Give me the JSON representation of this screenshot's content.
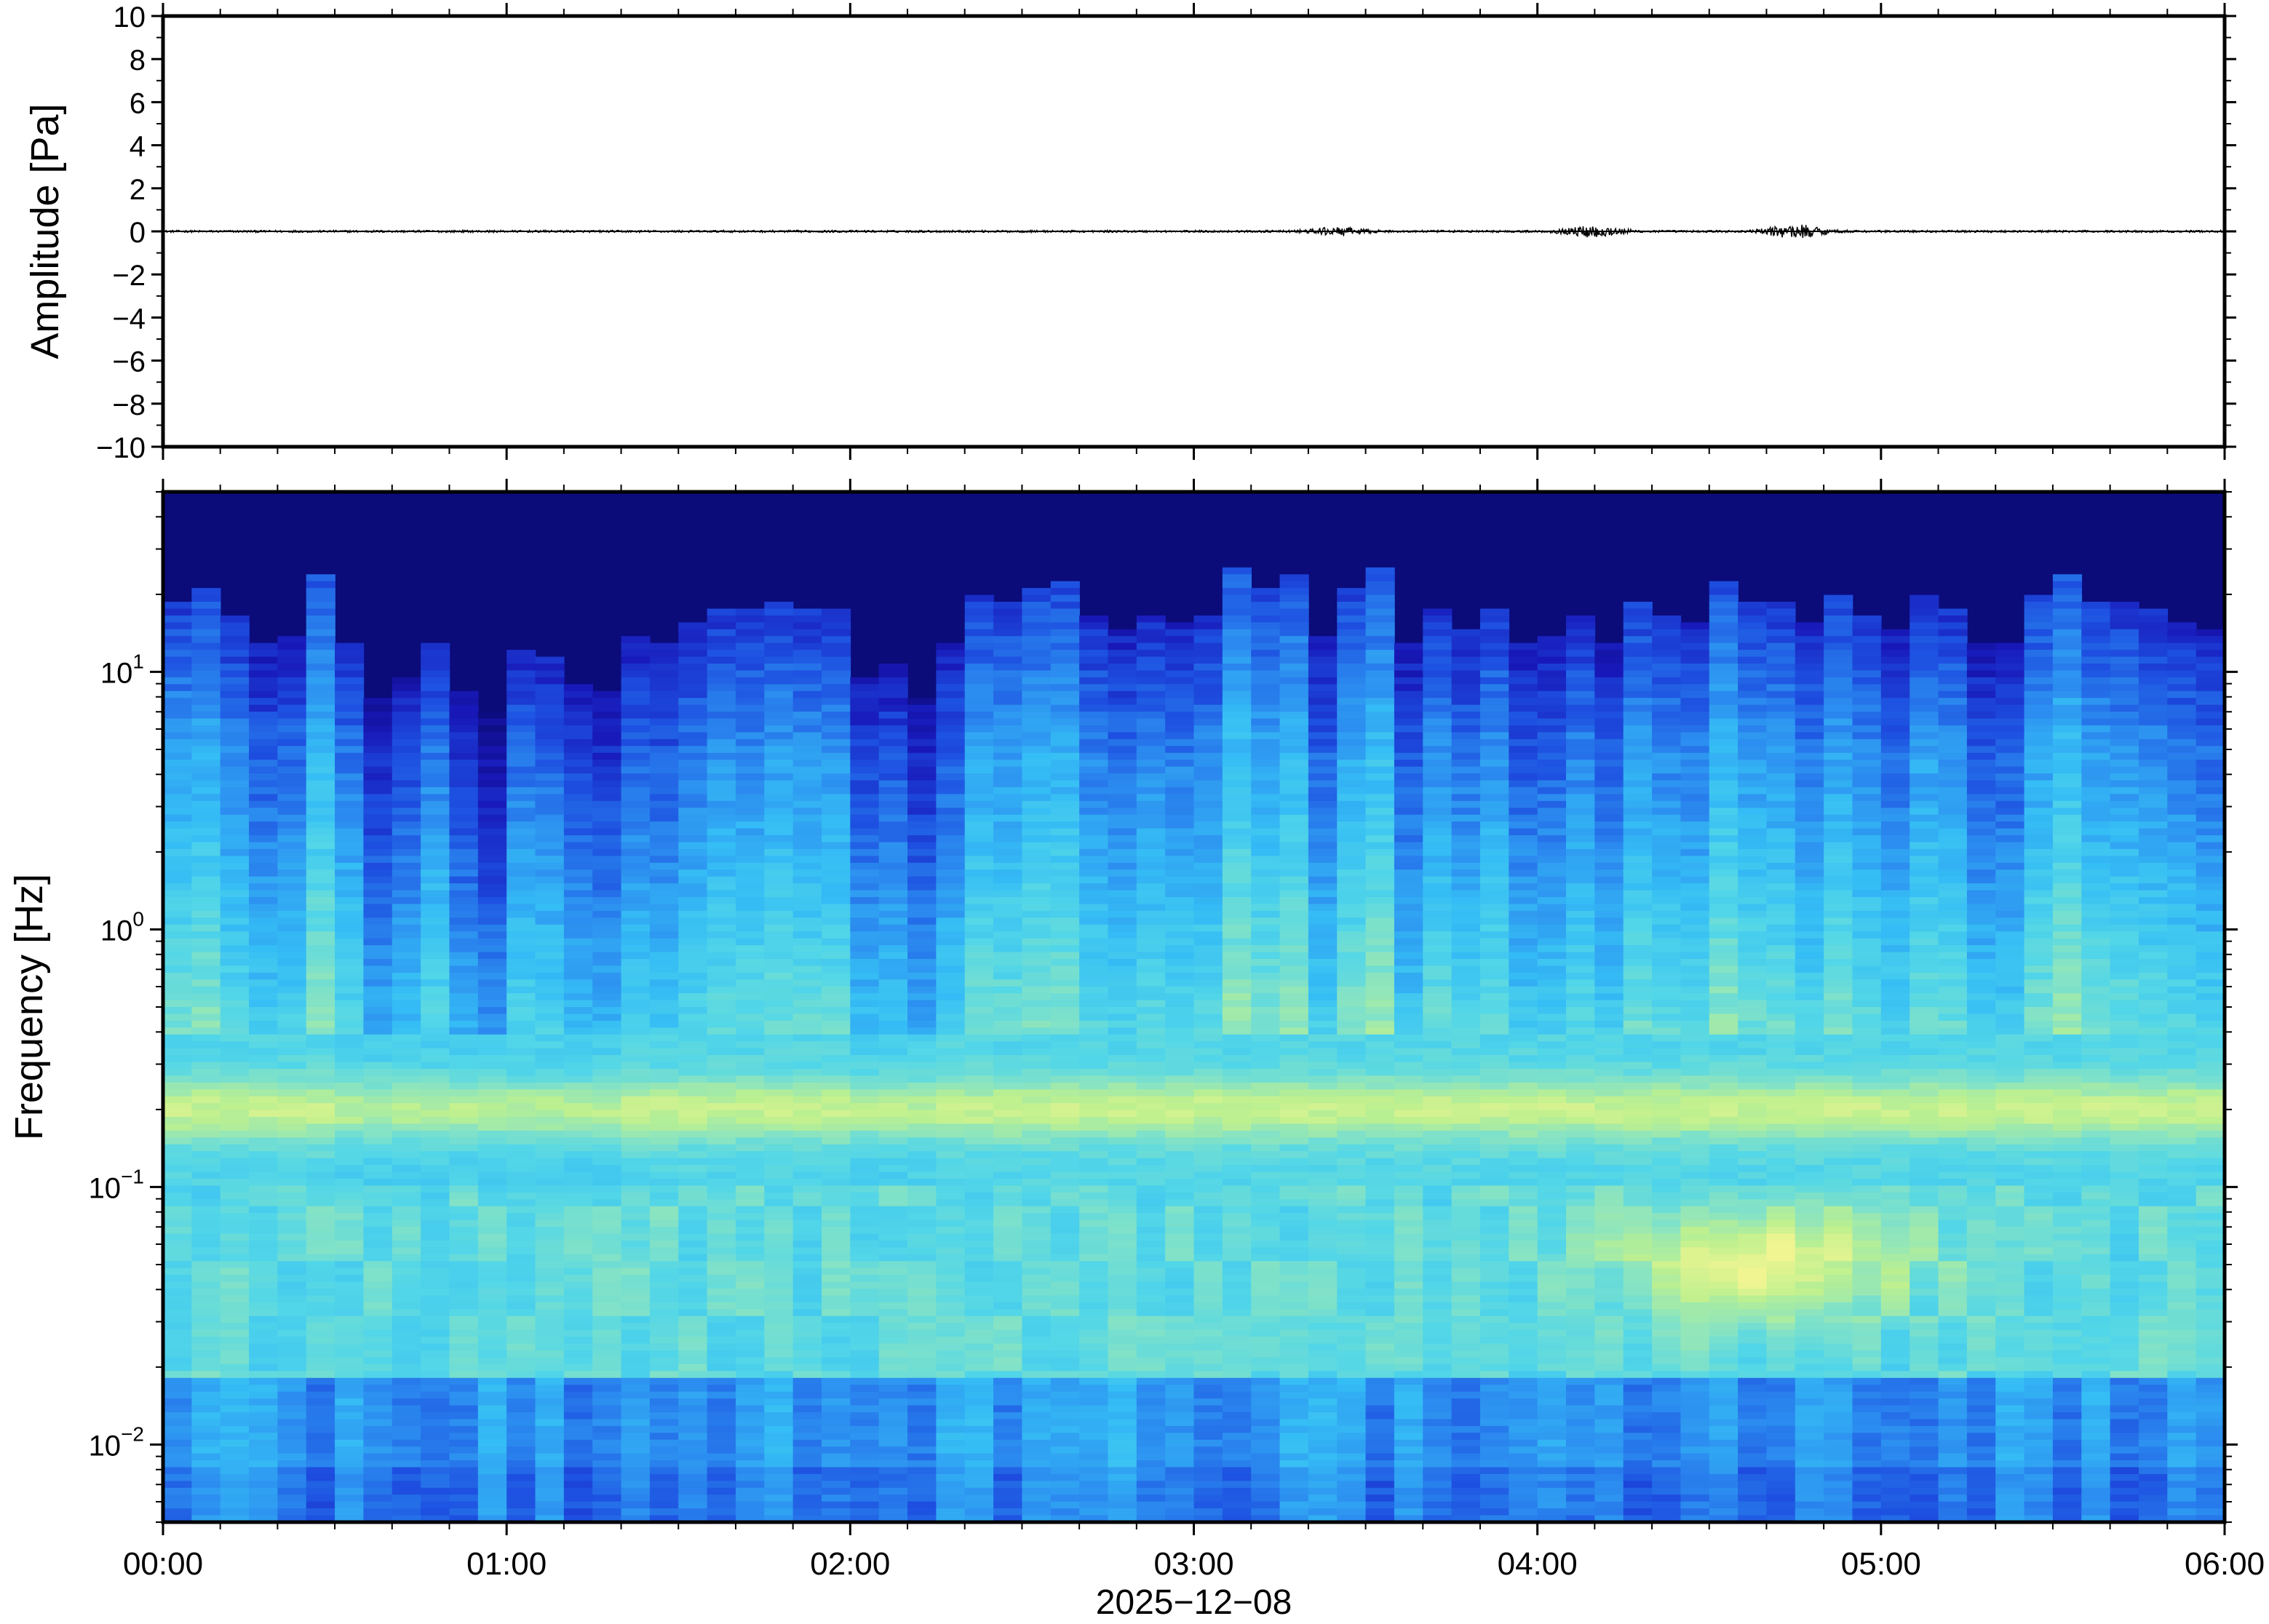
{
  "chart_data": [
    {
      "type": "line",
      "panel": "waveform",
      "ylabel": "Amplitude [Pa]",
      "ylim": [
        -10,
        10
      ],
      "yticks": [
        10,
        8,
        6,
        4,
        2,
        0,
        -2,
        -4,
        -6,
        -8,
        -10
      ],
      "ytick_labels": [
        "10",
        "8",
        "6",
        "4",
        "2",
        "0",
        "−2",
        "−4",
        "−6",
        "−8",
        "−10"
      ],
      "x_range": [
        "00:00",
        "06:00"
      ],
      "baseline": 0,
      "noise_amplitude": 0.05,
      "events": [
        {
          "time": "03:25",
          "amplitude": 0.15
        },
        {
          "time": "04:10",
          "amplitude": 0.25
        },
        {
          "time": "04:45",
          "amplitude": 0.3
        }
      ],
      "trace_color": "#000000"
    },
    {
      "type": "heatmap",
      "panel": "spectrogram",
      "ylabel": "Frequency [Hz]",
      "yscale": "log",
      "ylim": [
        0.005,
        50
      ],
      "yticks": [
        {
          "value": 10,
          "base": "10",
          "exp": "1"
        },
        {
          "value": 1,
          "base": "10",
          "exp": "0"
        },
        {
          "value": 0.1,
          "base": "10",
          "exp": "−1"
        },
        {
          "value": 0.01,
          "base": "10",
          "exp": "−2"
        }
      ],
      "x_range": [
        "00:00",
        "06:00"
      ],
      "xticks": [
        "00:00",
        "01:00",
        "02:00",
        "03:00",
        "04:00",
        "05:00",
        "06:00"
      ],
      "xlabel": "2025−12−08",
      "n_time_bins": 72,
      "n_freq_bins": 150,
      "colormap": [
        "#0b0b7a",
        "#1818b8",
        "#1d4fe0",
        "#2c8ef0",
        "#35bdf5",
        "#52d6e8",
        "#86e3c4",
        "#bdf08f",
        "#f1f591"
      ],
      "spectral_features": {
        "noise_floor_color": "#0b0b7a",
        "microbarom_band_hz": 0.2,
        "low_freq_peak_time": "04:40",
        "low_freq_peak_hz": 0.05
      }
    }
  ]
}
